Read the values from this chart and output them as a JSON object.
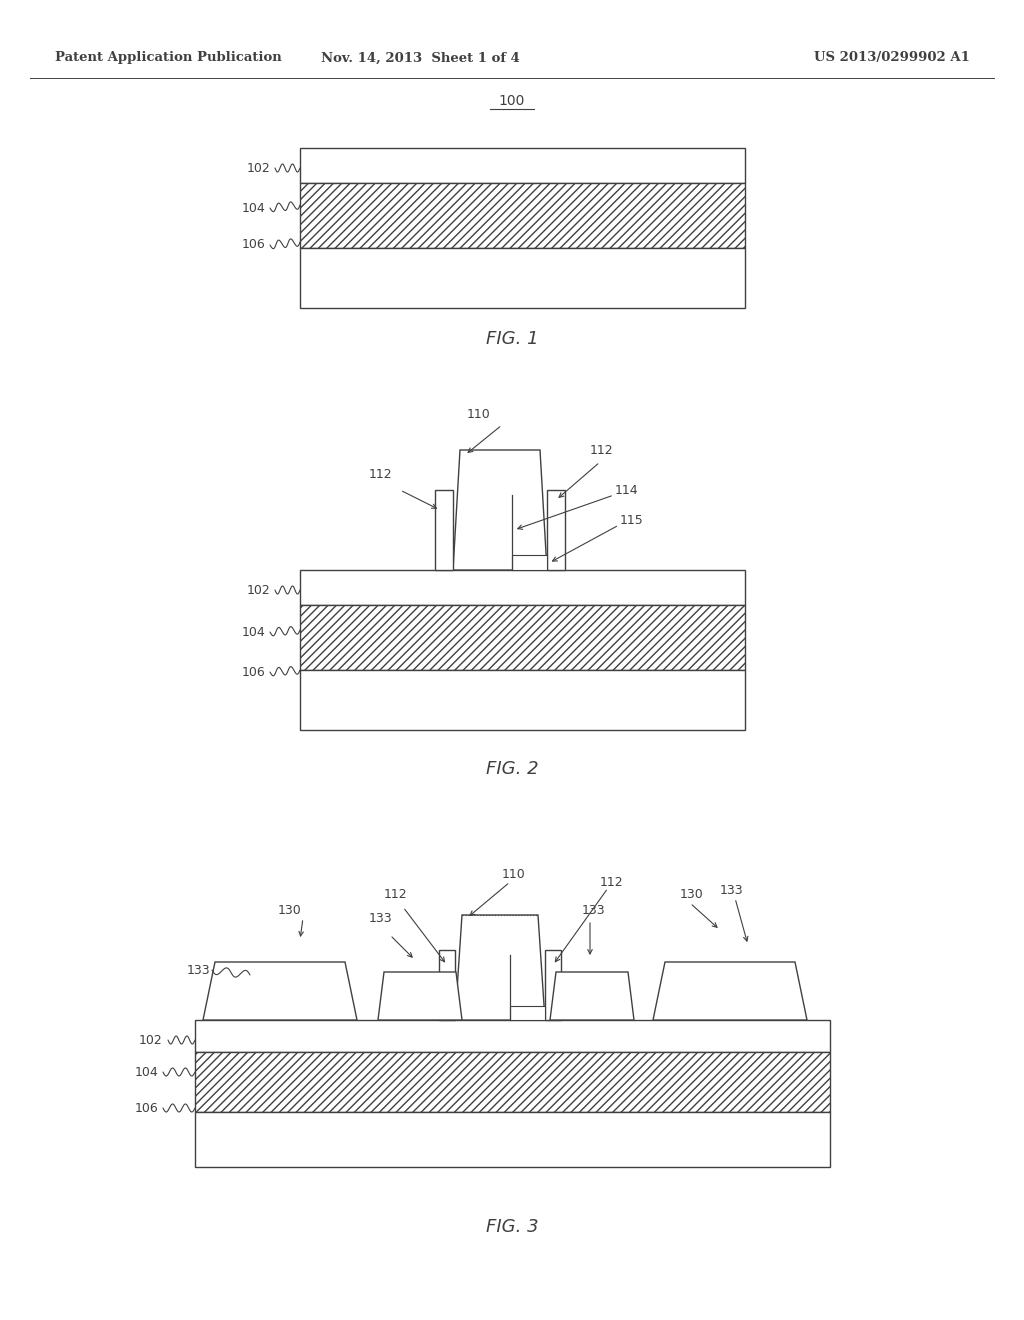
{
  "bg_color": "#ffffff",
  "lc": "#404040",
  "lw": 1.0,
  "header_left": "Patent Application Publication",
  "header_mid": "Nov. 14, 2013  Sheet 1 of 4",
  "header_right": "US 2013/0299902 A1",
  "fig1_label": "FIG. 1",
  "fig2_label": "FIG. 2",
  "fig3_label": "FIG. 3"
}
